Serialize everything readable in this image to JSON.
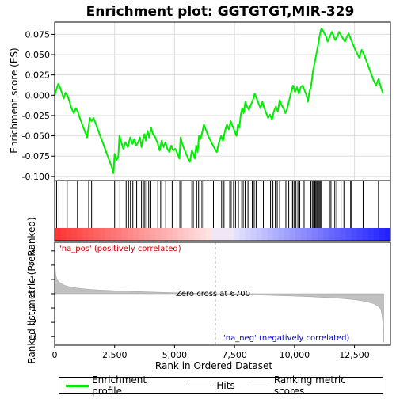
{
  "chart_data": {
    "type": "line",
    "title": "Enrichment plot: GGTGTGT,MIR-329",
    "panels": {
      "enrichment": {
        "ylabel": "Enrichment score (ES)",
        "ylim": [
          -0.105,
          0.09
        ],
        "yticks": [
          0.075,
          0.05,
          0.025,
          0.0,
          -0.025,
          -0.05,
          -0.075,
          -0.1
        ],
        "ytick_labels": [
          "0.075",
          "0.050",
          "0.025",
          "0.000",
          "-0.025",
          "-0.050",
          "-0.075",
          "-0.100"
        ],
        "series": [
          {
            "name": "Enrichment profile",
            "color": "#00ee00",
            "x": [
              0,
              60,
              150,
              220,
              300,
              380,
              450,
              530,
              620,
              700,
              800,
              880,
              960,
              1050,
              1150,
              1250,
              1350,
              1410,
              1470,
              1540,
              1620,
              1700,
              1800,
              1900,
              2000,
              2100,
              2200,
              2300,
              2400,
              2450,
              2500,
              2580,
              2650,
              2700,
              2780,
              2860,
              2950,
              3050,
              3150,
              3250,
              3320,
              3400,
              3480,
              3560,
              3620,
              3680,
              3740,
              3800,
              3870,
              3940,
              4020,
              4100,
              4200,
              4300,
              4380,
              4460,
              4540,
              4620,
              4700,
              4780,
              4860,
              4940,
              5030,
              5120,
              5200,
              5250,
              5320,
              5400,
              5480,
              5560,
              5640,
              5720,
              5780,
              5840,
              5900,
              5960,
              6020,
              6080,
              6150,
              6220,
              6300,
              6400,
              6500,
              6600,
              6680,
              6760,
              6850,
              6940,
              7020,
              7100,
              7180,
              7260,
              7340,
              7420,
              7500,
              7580,
              7640,
              7700,
              7760,
              7820,
              7880,
              7950,
              8020,
              8100,
              8180,
              8260,
              8340,
              8420,
              8500,
              8580,
              8660,
              8740,
              8820,
              8900,
              8980,
              9060,
              9140,
              9220,
              9300,
              9380,
              9460,
              9540,
              9620,
              9700,
              9780,
              9860,
              9940,
              10020,
              10100,
              10180,
              10260,
              10340,
              10420,
              10500,
              10560,
              10620,
              10680,
              10720,
              10760,
              10800,
              10840,
              10880,
              10920,
              10960,
              11000,
              11040,
              11080,
              11120,
              11180,
              11250,
              11320,
              11380,
              11440,
              11500,
              11560,
              11620,
              11700,
              11780,
              11860,
              11940,
              12020,
              12100,
              12180,
              12260,
              12340,
              12420,
              12500,
              12600,
              12700,
              12800,
              12900,
              13000,
              13100,
              13200,
              13300,
              13400,
              13500,
              13560,
              13620,
              13700
            ],
            "y": [
              0.0,
              0.006,
              0.014,
              0.01,
              0.003,
              -0.004,
              0.003,
              0.0,
              -0.008,
              -0.016,
              -0.022,
              -0.016,
              -0.02,
              -0.028,
              -0.036,
              -0.044,
              -0.052,
              -0.04,
              -0.028,
              -0.032,
              -0.028,
              -0.034,
              -0.042,
              -0.05,
              -0.058,
              -0.066,
              -0.074,
              -0.082,
              -0.09,
              -0.096,
              -0.072,
              -0.08,
              -0.076,
              -0.05,
              -0.058,
              -0.066,
              -0.058,
              -0.064,
              -0.052,
              -0.06,
              -0.054,
              -0.062,
              -0.058,
              -0.052,
              -0.064,
              -0.054,
              -0.048,
              -0.056,
              -0.044,
              -0.052,
              -0.04,
              -0.048,
              -0.052,
              -0.06,
              -0.068,
              -0.056,
              -0.064,
              -0.058,
              -0.066,
              -0.07,
              -0.062,
              -0.068,
              -0.066,
              -0.072,
              -0.078,
              -0.052,
              -0.06,
              -0.066,
              -0.072,
              -0.078,
              -0.082,
              -0.068,
              -0.072,
              -0.078,
              -0.062,
              -0.07,
              -0.05,
              -0.054,
              -0.046,
              -0.036,
              -0.042,
              -0.05,
              -0.056,
              -0.062,
              -0.066,
              -0.07,
              -0.058,
              -0.05,
              -0.056,
              -0.044,
              -0.036,
              -0.042,
              -0.032,
              -0.038,
              -0.044,
              -0.05,
              -0.036,
              -0.04,
              -0.024,
              -0.016,
              -0.022,
              -0.008,
              -0.014,
              -0.018,
              -0.012,
              -0.006,
              0.002,
              -0.004,
              -0.01,
              -0.016,
              -0.008,
              -0.016,
              -0.022,
              -0.028,
              -0.024,
              -0.03,
              -0.02,
              -0.014,
              -0.02,
              -0.006,
              -0.012,
              -0.016,
              -0.022,
              -0.016,
              -0.006,
              0.004,
              0.012,
              0.004,
              0.01,
              0.002,
              0.01,
              0.012,
              0.006,
              0.0,
              -0.008,
              0.004,
              0.01,
              0.018,
              0.028,
              0.034,
              0.04,
              0.046,
              0.052,
              0.058,
              0.064,
              0.072,
              0.078,
              0.082,
              0.08,
              0.076,
              0.072,
              0.066,
              0.07,
              0.074,
              0.078,
              0.074,
              0.068,
              0.072,
              0.078,
              0.074,
              0.07,
              0.066,
              0.072,
              0.076,
              0.07,
              0.064,
              0.058,
              0.052,
              0.046,
              0.056,
              0.05,
              0.042,
              0.034,
              0.026,
              0.018,
              0.012,
              0.02,
              0.014,
              0.008,
              0.002
            ]
          }
        ]
      },
      "hits": {
        "name": "Hits",
        "positions": [
          80,
          180,
          520,
          950,
          1420,
          1540,
          2500,
          2720,
          2980,
          3080,
          3160,
          3260,
          3420,
          3620,
          3700,
          3760,
          3840,
          3920,
          4010,
          4300,
          4420,
          4630,
          4900,
          5100,
          5220,
          5280,
          5720,
          5780,
          5920,
          6000,
          6140,
          6220,
          6620,
          6960,
          7060,
          7300,
          7360,
          7460,
          7540,
          7660,
          7800,
          7860,
          7940,
          8060,
          8240,
          8320,
          8400,
          8700,
          9000,
          9100,
          9200,
          9280,
          9380,
          9640,
          9760,
          9860,
          9920,
          9980,
          10060,
          10140,
          10220,
          10400,
          10680,
          10740,
          10790,
          10830,
          10860,
          10900,
          10940,
          10980,
          11020,
          11060,
          11100,
          11140,
          11460,
          11520,
          11680,
          11760,
          11940,
          12060,
          12340,
          12380,
          12860,
          13500
        ]
      },
      "metric": {
        "name": "Ranking metric scores",
        "ylabel": "Ranked list metric (PreRanked)",
        "ylim": [
          -3.6,
          3.6
        ],
        "yticks": [
          3,
          2,
          1,
          0,
          -1,
          -2,
          -3
        ],
        "ytick_labels": [
          "3",
          "2",
          "1",
          "0",
          "-1",
          "-2",
          "-3"
        ],
        "x": [
          0,
          20,
          50,
          100,
          200,
          400,
          700,
          1000,
          1500,
          2000,
          3000,
          4000,
          5000,
          6000,
          6700,
          7500,
          8500,
          9500,
          10500,
          11500,
          12000,
          12500,
          13000,
          13300,
          13500,
          13600,
          13650,
          13700,
          13720
        ],
        "y": [
          2.8,
          1.8,
          1.3,
          1.0,
          0.8,
          0.6,
          0.45,
          0.38,
          0.3,
          0.25,
          0.18,
          0.12,
          0.07,
          0.03,
          0.0,
          -0.04,
          -0.09,
          -0.14,
          -0.2,
          -0.28,
          -0.34,
          -0.42,
          -0.55,
          -0.7,
          -0.9,
          -1.1,
          -1.5,
          -2.4,
          -3.4
        ]
      }
    },
    "xlabel": "Rank in Ordered Dataset",
    "xlim": [
      0,
      14000
    ],
    "xticks": [
      0,
      2500,
      5000,
      7500,
      10000,
      12500
    ],
    "xtick_labels": [
      "0",
      "2,500",
      "5,000",
      "7,500",
      "10,000",
      "12,500"
    ],
    "zero_cross_rank": 6700,
    "annotations": {
      "pos_label": "'na_pos' (positively correlated)",
      "neg_label": "'na_neg' (negatively correlated)",
      "zero_cross_label": "Zero cross at 6700"
    },
    "legend": {
      "entries": [
        {
          "label": "Enrichment profile",
          "color": "#00ee00"
        },
        {
          "label": "Hits",
          "color": "#000000"
        },
        {
          "label": "Ranking metric scores",
          "color": "#c0c0c0"
        }
      ],
      "placement": "bottom"
    }
  }
}
